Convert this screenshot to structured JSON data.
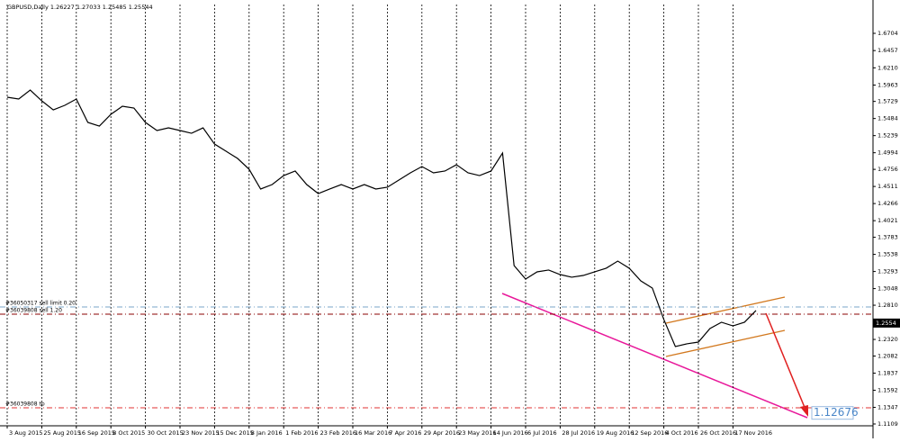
{
  "chart_data": {
    "type": "line",
    "title": "GBPUSD,Daily 1.26227 1.27033 1.25485 1.25544",
    "categories": [
      "3 Aug 2015",
      null,
      null,
      "25 Aug 2015",
      null,
      null,
      "16 Sep 2015",
      null,
      null,
      "8 Oct 2015",
      null,
      null,
      "30 Oct 2015",
      null,
      null,
      "23 Nov 2015",
      null,
      null,
      "15 Dec 2015",
      null,
      null,
      "8 Jan 2016",
      null,
      null,
      "1 Feb 2016",
      null,
      null,
      "23 Feb 2016",
      null,
      null,
      "16 Mar 2016",
      null,
      null,
      "7 Apr 2016",
      null,
      null,
      "29 Apr 2016",
      null,
      null,
      "23 May 2016",
      null,
      null,
      "14 Jun 2016",
      null,
      null,
      "6 Jul 2016",
      null,
      null,
      "28 Jul 2016",
      null,
      null,
      "19 Aug 2016",
      null,
      null,
      "12 Sep 2016",
      null,
      null,
      "4 Oct 2016",
      null,
      null,
      "26 Oct 2016",
      null,
      null,
      "17 Nov 2016",
      null,
      null
    ],
    "series": [
      {
        "name": "GBPUSD",
        "color": "#000000",
        "values": [
          1.5789,
          1.5763,
          1.5892,
          1.5737,
          1.5608,
          1.5673,
          1.5763,
          1.5428,
          1.5376,
          1.5544,
          1.566,
          1.5634,
          1.5428,
          1.5312,
          1.535,
          1.5312,
          1.5273,
          1.535,
          1.5118,
          1.5015,
          1.4912,
          1.4757,
          1.4474,
          1.4538,
          1.4667,
          1.4732,
          1.4538,
          1.4409,
          1.4474,
          1.4538,
          1.4474,
          1.4538,
          1.4474,
          1.45,
          1.4603,
          1.4706,
          1.4796,
          1.4706,
          1.4732,
          1.4822,
          1.4706,
          1.4667,
          1.4732,
          1.4989,
          1.3378,
          1.3185,
          1.3288,
          1.3314,
          1.3249,
          1.3211,
          1.3236,
          1.3288,
          1.334,
          1.3442,
          1.334,
          1.3159,
          1.3056,
          1.2605,
          1.2218,
          1.2257,
          1.2282,
          1.2476,
          1.2566,
          1.2514,
          1.2566,
          1.2734
        ]
      }
    ],
    "ylim": [
      1.1083,
      1.7117
    ],
    "yticks": [
      1.6704,
      1.6457,
      {
        "value": 1.621,
        "label": "1.6210"
      },
      1.5963,
      1.5729,
      1.5484,
      1.5239,
      1.4994,
      1.4756,
      1.4511,
      1.4266,
      1.4021,
      1.3783,
      1.3538,
      1.3293,
      1.3048,
      {
        "value": 1.281,
        "label": "1.2810"
      },
      {
        "value": 1.232,
        "label": "1.2320"
      },
      1.2082,
      1.1837,
      1.1592,
      1.1347,
      1.1109
    ],
    "grid": true,
    "current_price": {
      "value": 1.25544,
      "label": "1.2554"
    },
    "levels": [
      {
        "label": "#36050317 sell limit 0.20",
        "value": 1.2785,
        "color": "#7aa6c8"
      },
      {
        "label": "#36039808 sell 1.20",
        "value": 1.2682,
        "color": "#8b0000"
      },
      {
        "label": "#36039808 tp",
        "value": 1.1341,
        "color": "#e03030"
      }
    ],
    "target": 1.12676
  }
}
